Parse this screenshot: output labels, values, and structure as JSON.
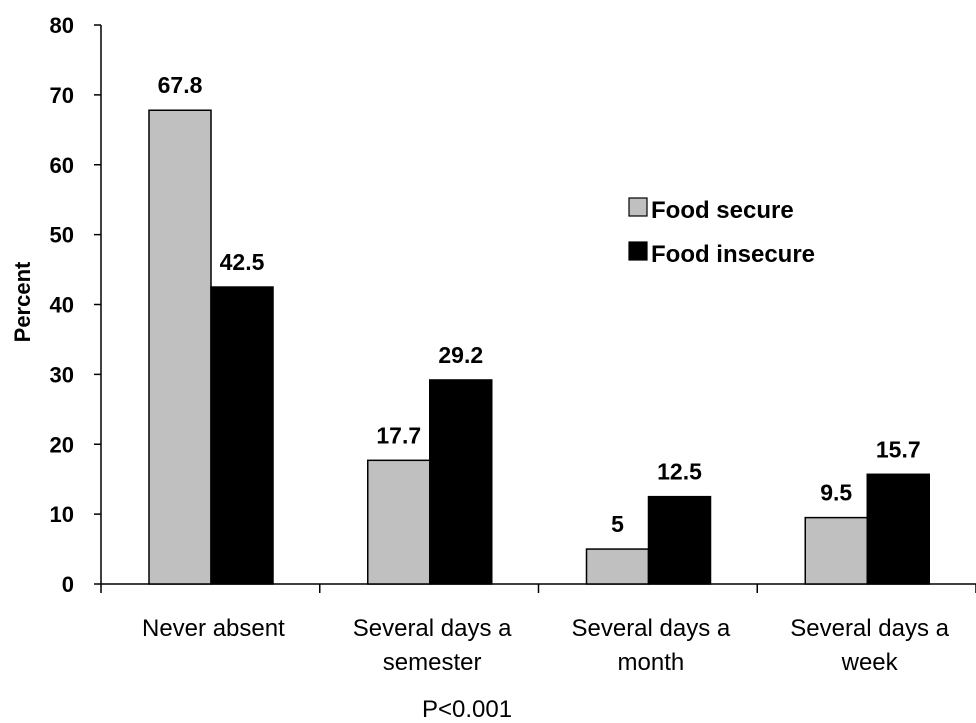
{
  "chart_data": {
    "type": "bar",
    "ylabel": "Percent",
    "xlabel": "",
    "ylim": [
      0,
      80
    ],
    "yticks": [
      "0",
      "10",
      "20",
      "30",
      "40",
      "50",
      "60",
      "70",
      "80"
    ],
    "categories": [
      [
        "Never absent"
      ],
      [
        "Several days a",
        "semester"
      ],
      [
        "Several days a",
        "month"
      ],
      [
        "Several days a",
        "week"
      ]
    ],
    "series": [
      {
        "name": "Food secure",
        "color": "#c0c0c0",
        "values": [
          67.8,
          17.7,
          5,
          9.5
        ],
        "labels": [
          "67.8",
          "17.7",
          "5",
          "9.5"
        ]
      },
      {
        "name": "Food insecure",
        "color": "#000000",
        "values": [
          42.5,
          29.2,
          12.5,
          15.7
        ],
        "labels": [
          "42.5",
          "29.2",
          "12.5",
          "15.7"
        ]
      }
    ],
    "legend_position": "right",
    "grid": false,
    "note": "P<0.001"
  }
}
